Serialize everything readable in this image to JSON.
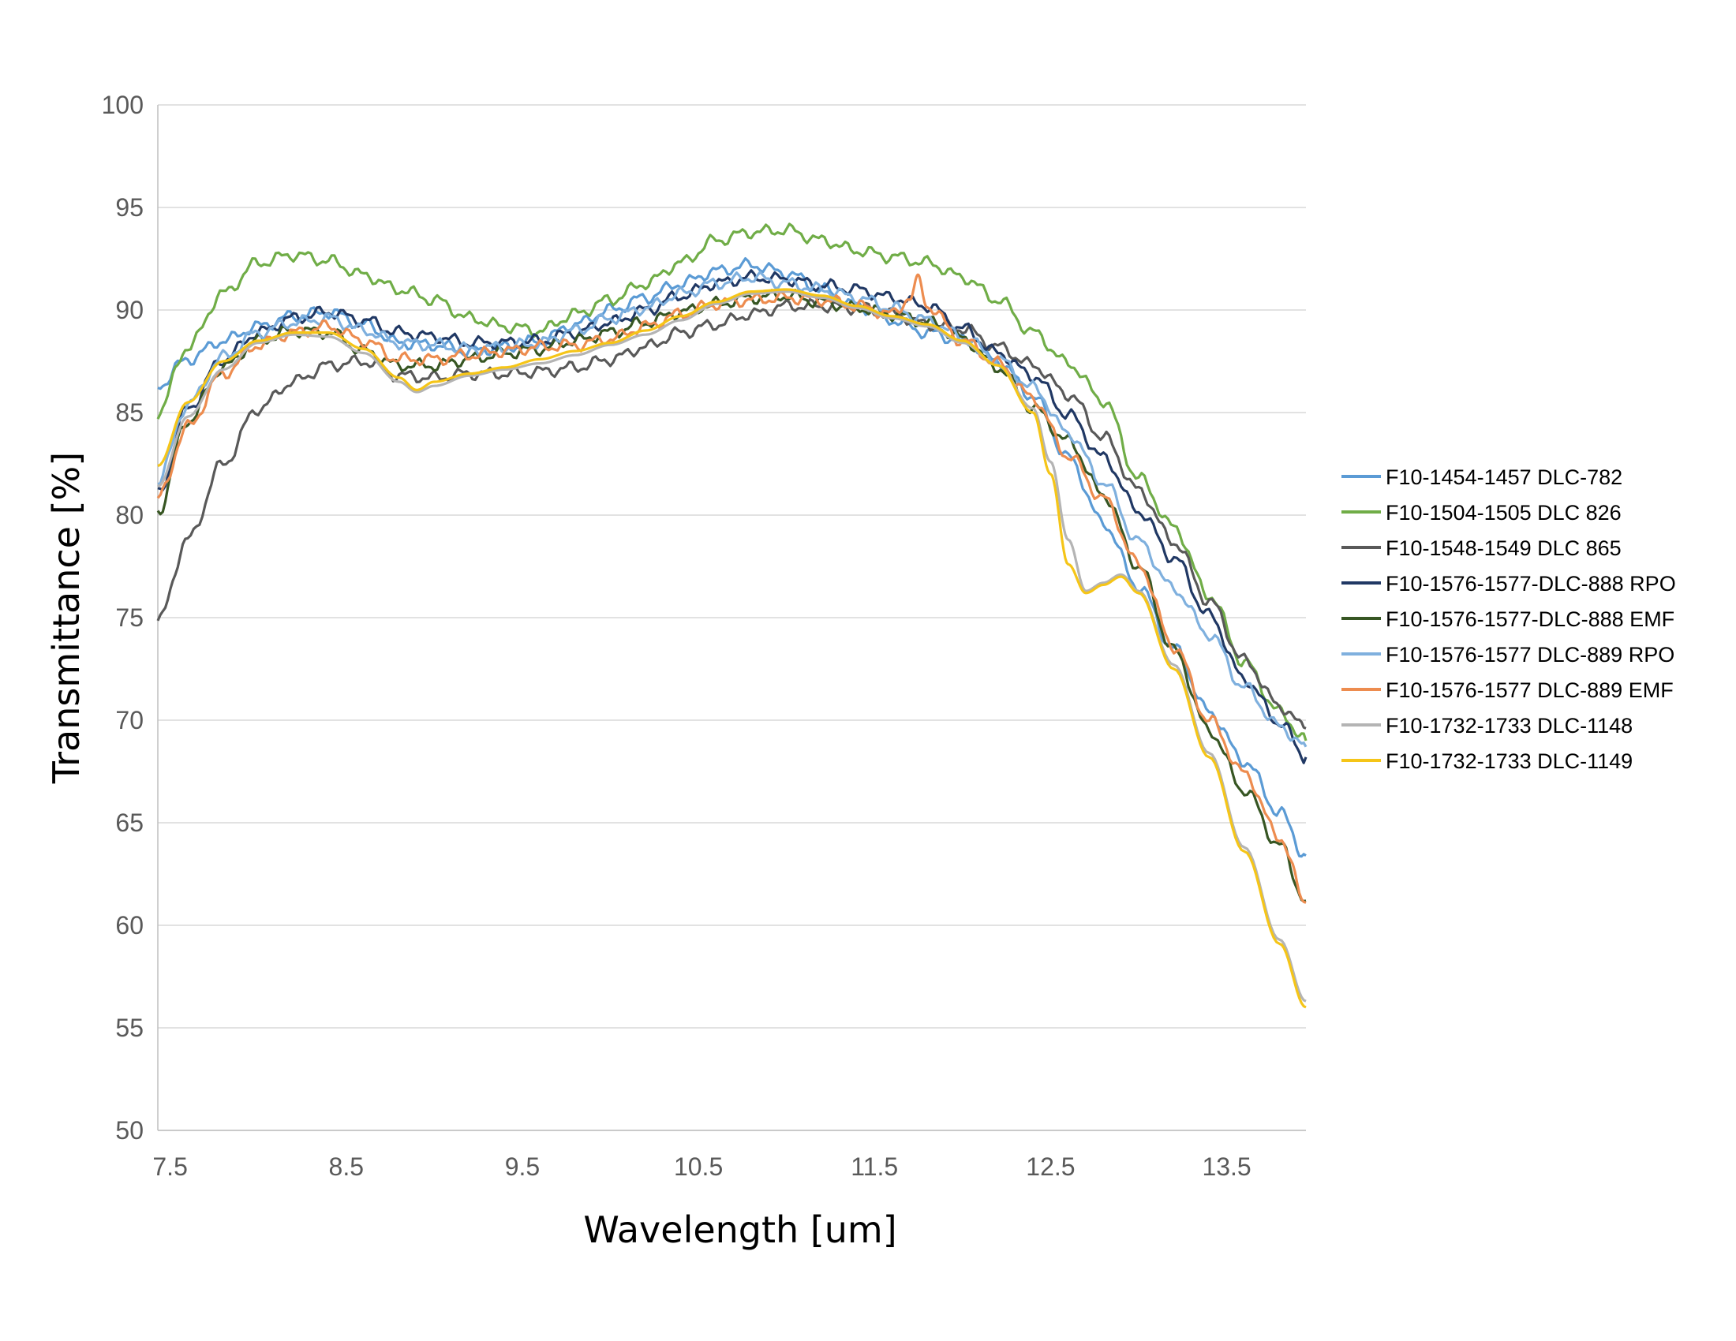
{
  "chart_data": {
    "type": "line",
    "title": "",
    "xlabel": "Wavelength [um]",
    "ylabel": "Transmittance [%]",
    "xlim": [
      7.43,
      13.95
    ],
    "ylim": [
      50,
      100
    ],
    "xticks": [
      "7.5",
      "8.5",
      "9.5",
      "10.5",
      "11.5",
      "12.5",
      "13.5"
    ],
    "yticks": [
      "50",
      "55",
      "60",
      "65",
      "70",
      "75",
      "80",
      "85",
      "90",
      "95",
      "100"
    ],
    "grid": true,
    "legend_position": "right",
    "series": [
      {
        "name": "F10-1454-1457 DLC-782",
        "color": "#5b9bd5",
        "x": [
          7.43,
          7.6,
          7.8,
          8.0,
          8.2,
          8.4,
          8.6,
          8.8,
          9.0,
          9.2,
          9.4,
          9.6,
          9.8,
          10.0,
          10.2,
          10.4,
          10.6,
          10.8,
          11.0,
          11.2,
          11.4,
          11.6,
          11.8,
          12.0,
          12.2,
          12.4,
          12.6,
          12.8,
          13.0,
          13.2,
          13.4,
          13.6,
          13.8,
          13.95
        ],
        "y": [
          86.3,
          87.6,
          88.5,
          89.2,
          89.7,
          89.9,
          89.3,
          88.4,
          88.3,
          88.0,
          88.2,
          88.5,
          89.3,
          90.0,
          90.6,
          91.3,
          91.9,
          92.2,
          91.8,
          91.0,
          90.2,
          89.5,
          88.9,
          88.5,
          87.5,
          85.8,
          82.8,
          79.6,
          76.5,
          73.5,
          70.4,
          68.0,
          65.5,
          63.4
        ]
      },
      {
        "name": "F10-1504-1505 DLC 826",
        "color": "#70ad47",
        "x": [
          7.43,
          7.6,
          7.8,
          8.0,
          8.2,
          8.4,
          8.6,
          8.8,
          9.0,
          9.2,
          9.4,
          9.6,
          9.8,
          10.0,
          10.2,
          10.4,
          10.6,
          10.8,
          11.0,
          11.2,
          11.4,
          11.6,
          11.8,
          12.0,
          12.2,
          12.4,
          12.6,
          12.8,
          13.0,
          13.2,
          13.4,
          13.6,
          13.8,
          13.95
        ],
        "y": [
          85.0,
          88.2,
          90.8,
          92.3,
          92.7,
          92.4,
          91.7,
          91.0,
          90.5,
          89.6,
          89.2,
          89.0,
          89.8,
          90.5,
          91.3,
          92.3,
          93.4,
          93.8,
          93.9,
          93.4,
          92.9,
          92.6,
          92.3,
          91.6,
          90.5,
          88.9,
          87.4,
          85.6,
          81.8,
          79.4,
          76.1,
          72.8,
          70.4,
          69.0
        ]
      },
      {
        "name": "F10-1548-1549 DLC 865",
        "color": "#595959",
        "x": [
          7.43,
          7.6,
          7.8,
          8.0,
          8.2,
          8.4,
          8.6,
          8.8,
          9.0,
          9.2,
          9.4,
          9.6,
          9.8,
          10.0,
          10.2,
          10.4,
          10.6,
          10.8,
          11.0,
          11.2,
          11.4,
          11.6,
          11.8,
          12.0,
          12.2,
          12.4,
          12.6,
          12.8,
          13.0,
          13.2,
          13.4,
          13.6,
          13.8,
          13.95
        ],
        "y": [
          74.8,
          78.8,
          82.5,
          85.2,
          86.5,
          87.3,
          87.5,
          86.8,
          86.7,
          86.9,
          86.9,
          87.0,
          87.2,
          87.6,
          88.2,
          88.9,
          89.3,
          89.8,
          90.2,
          90.2,
          90.1,
          89.8,
          89.3,
          89.1,
          88.2,
          87.3,
          85.9,
          83.8,
          81.2,
          78.7,
          75.8,
          72.9,
          70.7,
          69.6
        ]
      },
      {
        "name": "F10-1576-1577-DLC-888 RPO",
        "color": "#203864",
        "x": [
          7.43,
          7.6,
          7.8,
          8.0,
          8.2,
          8.4,
          8.6,
          8.8,
          9.0,
          9.2,
          9.4,
          9.6,
          9.8,
          10.0,
          10.2,
          10.4,
          10.6,
          10.8,
          11.0,
          11.2,
          11.4,
          11.6,
          11.8,
          12.0,
          12.2,
          12.4,
          12.6,
          12.8,
          13.0,
          13.2,
          13.4,
          13.6,
          13.8,
          13.95
        ],
        "y": [
          81.0,
          85.2,
          87.6,
          88.9,
          89.6,
          89.9,
          89.5,
          88.9,
          88.7,
          88.4,
          88.4,
          88.5,
          88.9,
          89.4,
          90.0,
          90.7,
          91.3,
          91.6,
          91.5,
          91.2,
          91.0,
          90.6,
          90.2,
          89.1,
          87.9,
          86.8,
          84.9,
          82.8,
          80.2,
          77.9,
          75.1,
          72.0,
          69.9,
          68.2
        ]
      },
      {
        "name": "F10-1576-1577-DLC-888 EMF",
        "color": "#375623",
        "x": [
          7.43,
          7.6,
          7.8,
          8.0,
          8.2,
          8.4,
          8.6,
          8.8,
          9.0,
          9.2,
          9.4,
          9.6,
          9.8,
          10.0,
          10.2,
          10.4,
          10.6,
          10.8,
          11.0,
          11.2,
          11.4,
          11.6,
          11.8,
          12.0,
          12.2,
          12.4,
          12.6,
          12.8,
          13.0,
          13.2,
          13.4,
          13.6,
          13.8,
          13.95
        ],
        "y": [
          80.2,
          84.6,
          87.2,
          88.5,
          89.0,
          88.9,
          88.0,
          87.3,
          87.3,
          87.6,
          87.9,
          88.1,
          88.5,
          88.9,
          89.4,
          89.9,
          90.3,
          90.6,
          90.7,
          90.4,
          90.1,
          89.8,
          89.4,
          88.6,
          87.2,
          85.2,
          83.6,
          81.0,
          77.5,
          73.4,
          69.5,
          66.6,
          63.9,
          61.2
        ]
      },
      {
        "name": "F10-1576-1577 DLC-889 RPO",
        "color": "#7fb0de",
        "x": [
          7.43,
          7.6,
          7.8,
          8.0,
          8.2,
          8.4,
          8.6,
          8.8,
          9.0,
          9.2,
          9.4,
          9.6,
          9.8,
          10.0,
          10.2,
          10.4,
          10.6,
          10.8,
          11.0,
          11.2,
          11.4,
          11.6,
          11.8,
          12.0,
          12.2,
          12.4,
          12.6,
          12.8,
          13.0,
          13.2,
          13.4,
          13.6,
          13.8,
          13.95
        ],
        "y": [
          81.7,
          85.4,
          87.7,
          88.9,
          89.4,
          89.6,
          89.0,
          88.4,
          88.3,
          88.1,
          88.2,
          88.4,
          89.0,
          89.6,
          90.1,
          90.8,
          91.3,
          91.6,
          91.3,
          91.0,
          90.6,
          90.1,
          89.5,
          88.7,
          87.6,
          86.2,
          84.0,
          81.6,
          78.7,
          76.4,
          74.2,
          71.6,
          69.7,
          68.7
        ]
      },
      {
        "name": "F10-1576-1577 DLC-889 EMF",
        "color": "#ed8c4f",
        "x": [
          7.43,
          7.6,
          7.8,
          8.0,
          8.2,
          8.4,
          8.6,
          8.8,
          9.0,
          9.2,
          9.4,
          9.6,
          9.8,
          10.0,
          10.2,
          10.4,
          10.6,
          10.8,
          11.0,
          11.2,
          11.4,
          11.6,
          11.7,
          11.75,
          11.8,
          12.0,
          12.2,
          12.4,
          12.6,
          12.8,
          13.0,
          13.2,
          13.4,
          13.6,
          13.8,
          13.95
        ],
        "y": [
          80.8,
          84.3,
          86.9,
          88.3,
          88.9,
          89.2,
          88.5,
          87.6,
          87.6,
          87.8,
          88.0,
          88.2,
          88.3,
          88.6,
          89.2,
          89.8,
          90.3,
          90.5,
          90.6,
          90.5,
          90.2,
          89.8,
          90.6,
          91.4,
          90.2,
          88.5,
          87.4,
          85.7,
          82.9,
          80.8,
          77.6,
          73.6,
          70.0,
          67.4,
          64.3,
          61.1
        ]
      },
      {
        "name": "F10-1732-1733 DLC-1148",
        "color": "#b4b4b4",
        "x": [
          7.43,
          7.6,
          7.8,
          8.0,
          8.2,
          8.4,
          8.6,
          8.8,
          8.9,
          9.0,
          9.2,
          9.4,
          9.6,
          9.8,
          10.0,
          10.2,
          10.4,
          10.6,
          10.8,
          11.0,
          11.2,
          11.4,
          11.6,
          11.8,
          12.0,
          12.2,
          12.4,
          12.5,
          12.6,
          12.7,
          12.8,
          12.9,
          13.0,
          13.2,
          13.4,
          13.6,
          13.8,
          13.95
        ],
        "y": [
          81.4,
          84.8,
          87.1,
          88.4,
          88.8,
          88.7,
          87.9,
          86.5,
          86.0,
          86.3,
          86.8,
          87.1,
          87.4,
          87.8,
          88.3,
          88.8,
          89.5,
          90.3,
          90.8,
          90.9,
          90.6,
          90.1,
          89.6,
          89.2,
          88.4,
          87.3,
          85.2,
          82.6,
          78.8,
          76.3,
          76.7,
          77.1,
          76.3,
          72.7,
          68.4,
          63.8,
          59.3,
          56.3
        ]
      },
      {
        "name": "F10-1732-1733 DLC-1149",
        "color": "#f5c518",
        "x": [
          7.43,
          7.6,
          7.8,
          8.0,
          8.2,
          8.4,
          8.6,
          8.8,
          8.9,
          9.0,
          9.2,
          9.4,
          9.6,
          9.8,
          10.0,
          10.2,
          10.4,
          10.6,
          10.8,
          11.0,
          11.2,
          11.4,
          11.6,
          11.8,
          12.0,
          12.2,
          12.4,
          12.5,
          12.6,
          12.7,
          12.8,
          12.9,
          13.0,
          13.2,
          13.4,
          13.6,
          13.8,
          13.95
        ],
        "y": [
          82.4,
          85.5,
          87.5,
          88.5,
          88.9,
          88.9,
          88.1,
          86.7,
          86.1,
          86.5,
          86.9,
          87.2,
          87.6,
          88.0,
          88.4,
          89.0,
          89.7,
          90.4,
          90.9,
          91.0,
          90.7,
          90.2,
          89.7,
          89.3,
          88.5,
          87.3,
          85.0,
          82.0,
          77.6,
          76.2,
          76.6,
          77.0,
          76.2,
          72.5,
          68.2,
          63.6,
          59.1,
          56.0
        ]
      }
    ]
  }
}
